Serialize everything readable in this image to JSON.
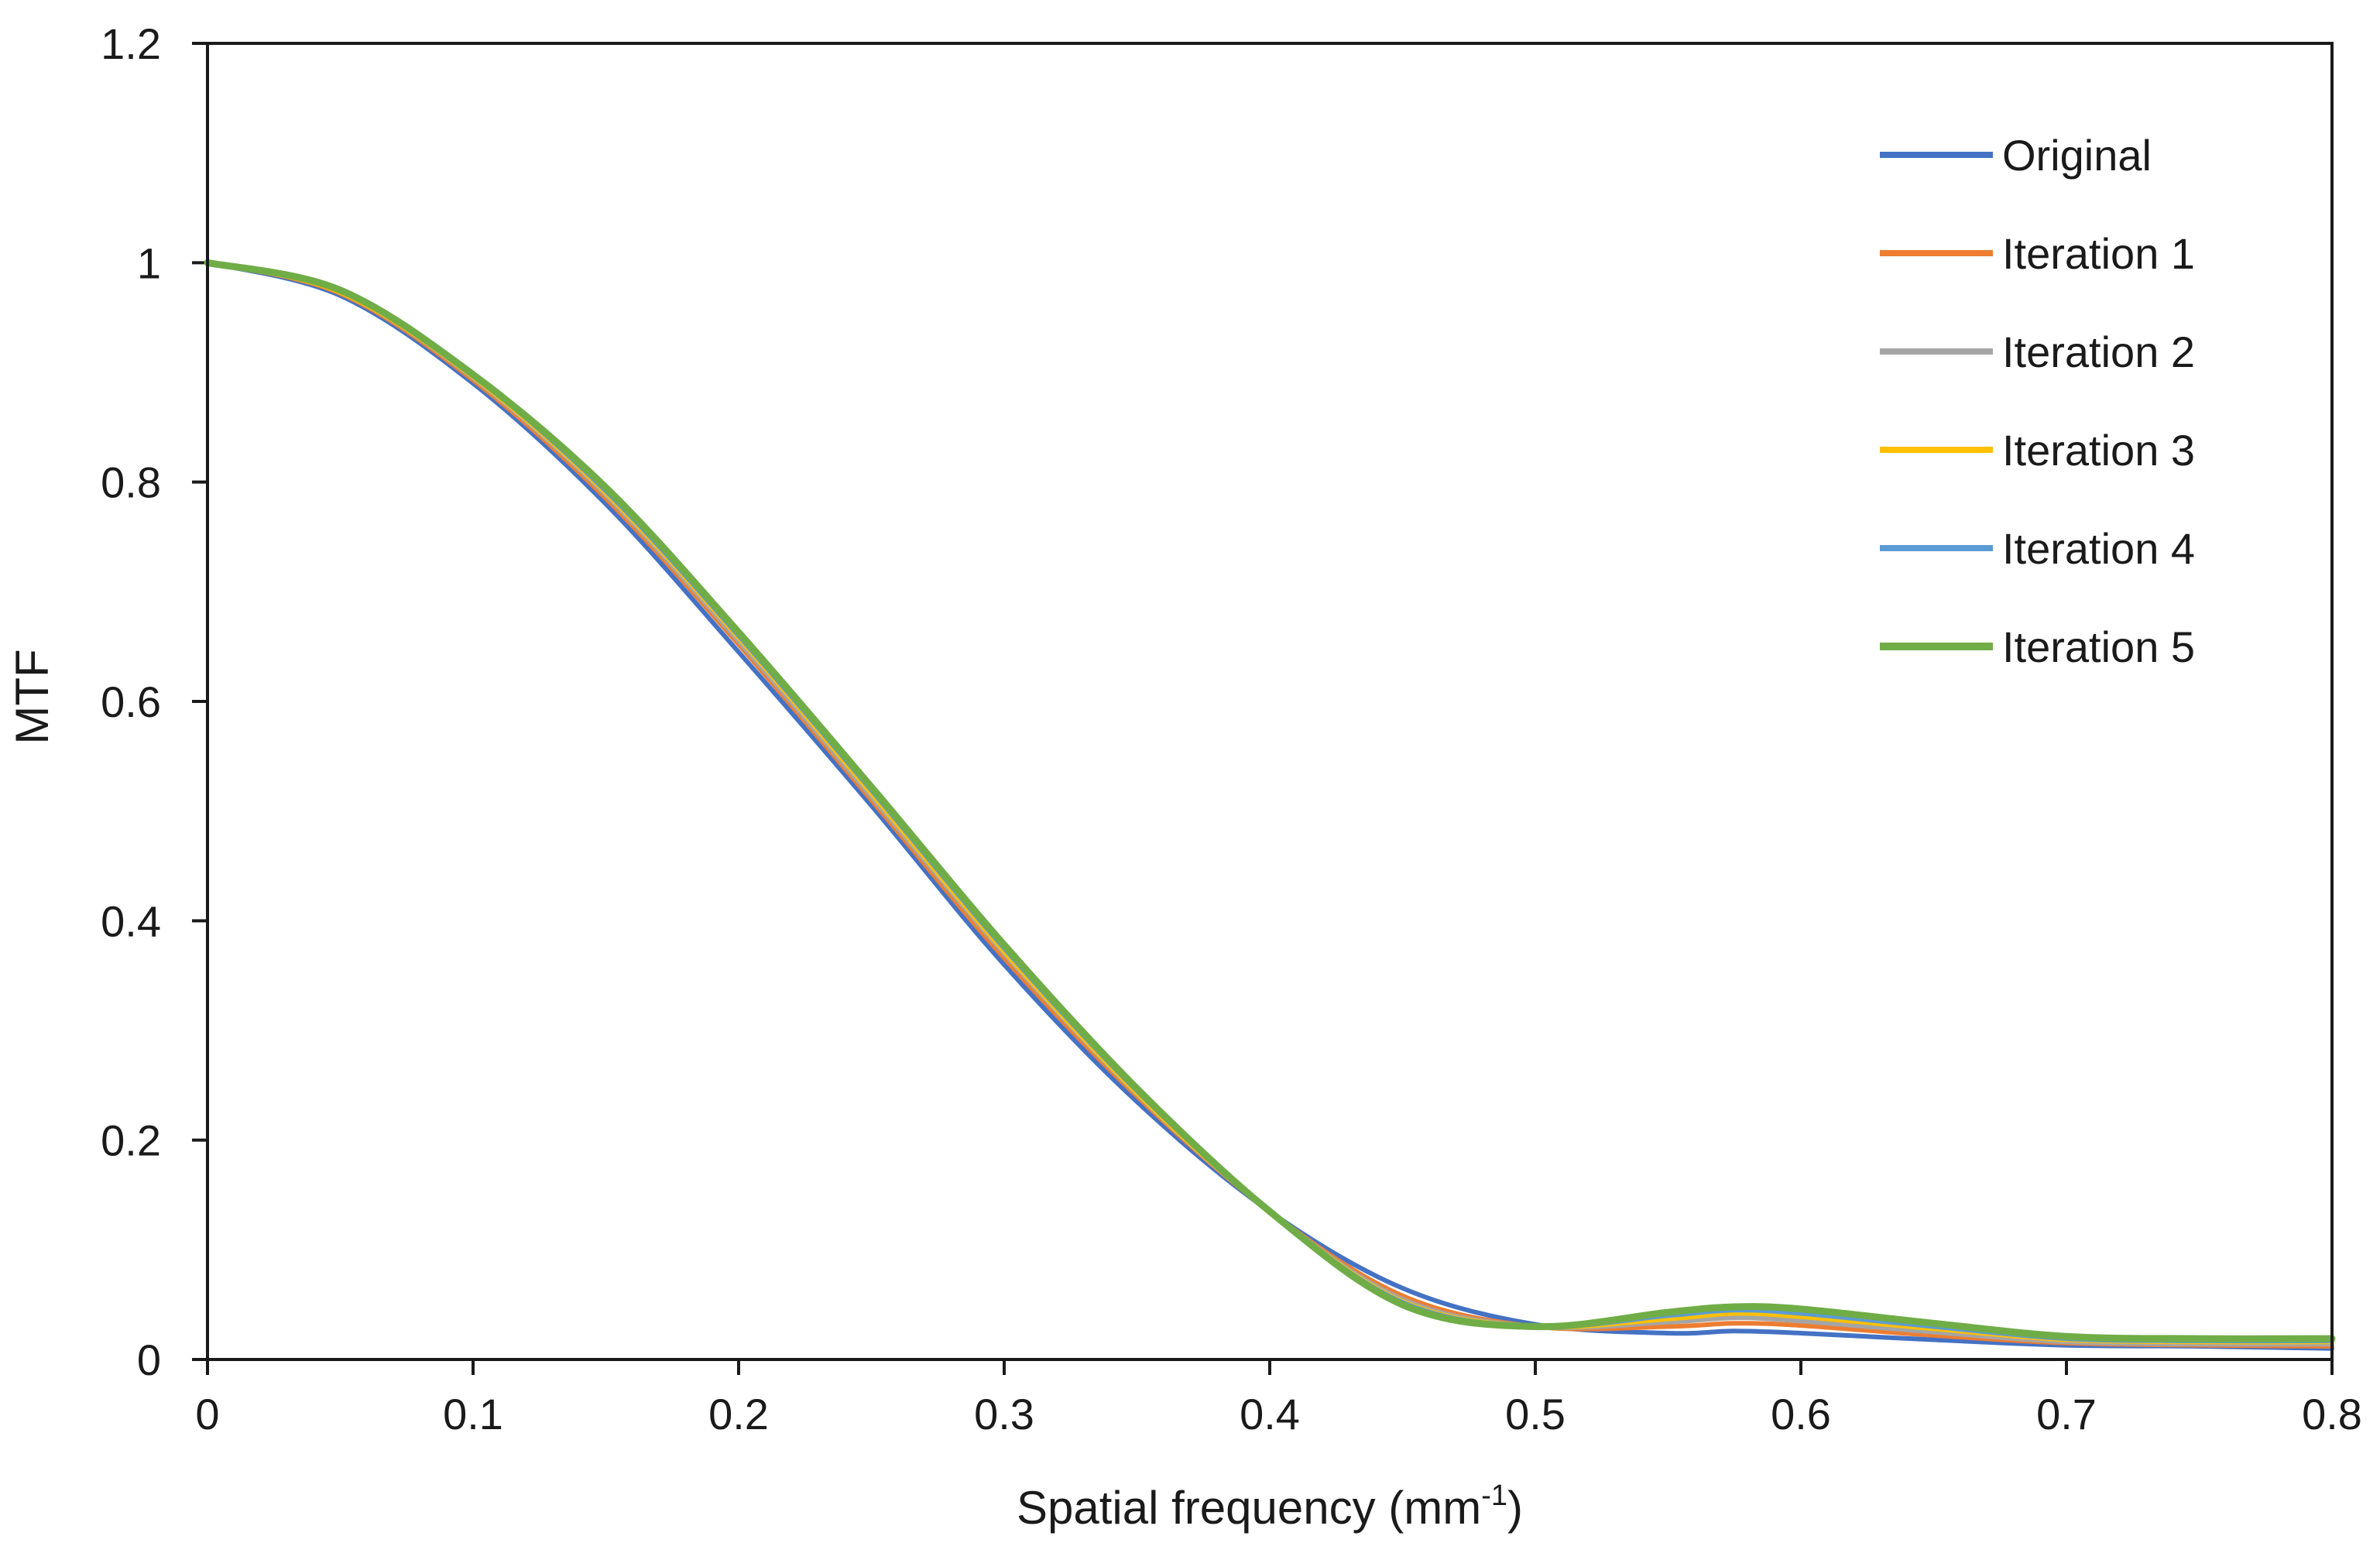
{
  "chart_data": {
    "type": "line",
    "title": "",
    "xlabel": "Spatial frequency (mm",
    "xlabel_superscript": "-1",
    "xlabel_close": ")",
    "ylabel": "MTF",
    "xlim": [
      0,
      0.8
    ],
    "ylim": [
      0,
      1.2
    ],
    "x_ticks": [
      0,
      0.1,
      0.2,
      0.3,
      0.4,
      0.5,
      0.6,
      0.7,
      0.8
    ],
    "x_tick_labels": [
      "0",
      "0.1",
      "0.2",
      "0.3",
      "0.4",
      "0.5",
      "0.6",
      "0.7",
      "0.8"
    ],
    "y_ticks": [
      0,
      0.2,
      0.4,
      0.6,
      0.8,
      1.0,
      1.2
    ],
    "y_tick_labels": [
      "0",
      "0.2",
      "0.4",
      "0.6",
      "0.8",
      "1",
      "1.2"
    ],
    "grid": false,
    "legend_position": "top-right",
    "x": [
      0,
      0.05,
      0.1,
      0.15,
      0.2,
      0.25,
      0.3,
      0.35,
      0.4,
      0.45,
      0.5,
      0.55,
      0.575,
      0.6,
      0.65,
      0.7,
      0.75,
      0.8
    ],
    "series": [
      {
        "name": "Original",
        "color": "#4472C4",
        "values": [
          1.0,
          0.97,
          0.89,
          0.78,
          0.645,
          0.505,
          0.36,
          0.235,
          0.135,
          0.065,
          0.032,
          0.024,
          0.026,
          0.024,
          0.018,
          0.013,
          0.012,
          0.01
        ]
      },
      {
        "name": "Iteration 1",
        "color": "#ED7D31",
        "values": [
          1.0,
          0.972,
          0.893,
          0.785,
          0.652,
          0.51,
          0.366,
          0.24,
          0.135,
          0.058,
          0.03,
          0.03,
          0.033,
          0.031,
          0.022,
          0.015,
          0.013,
          0.012
        ]
      },
      {
        "name": "Iteration 2",
        "color": "#A5A5A5",
        "values": [
          1.0,
          0.973,
          0.895,
          0.788,
          0.655,
          0.513,
          0.37,
          0.242,
          0.135,
          0.055,
          0.03,
          0.034,
          0.038,
          0.035,
          0.025,
          0.016,
          0.014,
          0.014
        ]
      },
      {
        "name": "Iteration 3",
        "color": "#FFC000",
        "values": [
          1.0,
          0.973,
          0.896,
          0.79,
          0.658,
          0.516,
          0.372,
          0.243,
          0.135,
          0.053,
          0.03,
          0.037,
          0.042,
          0.039,
          0.028,
          0.018,
          0.016,
          0.016
        ]
      },
      {
        "name": "Iteration 4",
        "color": "#5B9BD5",
        "values": [
          1.0,
          0.974,
          0.897,
          0.792,
          0.66,
          0.519,
          0.375,
          0.245,
          0.135,
          0.052,
          0.03,
          0.04,
          0.045,
          0.042,
          0.03,
          0.019,
          0.017,
          0.017
        ]
      },
      {
        "name": "Iteration 5",
        "color": "#70AD47",
        "values": [
          1.0,
          0.975,
          0.898,
          0.795,
          0.663,
          0.522,
          0.378,
          0.247,
          0.135,
          0.05,
          0.03,
          0.043,
          0.048,
          0.046,
          0.033,
          0.021,
          0.019,
          0.019
        ]
      }
    ]
  }
}
